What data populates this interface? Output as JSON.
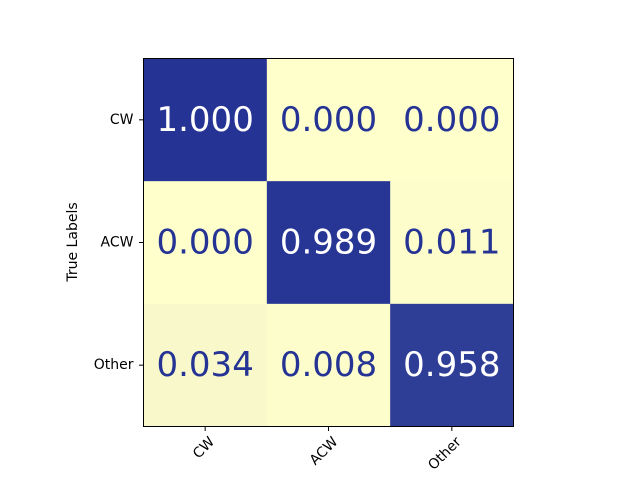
{
  "chart_data": {
    "type": "heatmap",
    "title": "",
    "xlabel": "",
    "ylabel": "True Labels",
    "x_categories": [
      "CW",
      "ACW",
      "Other"
    ],
    "y_categories": [
      "CW",
      "ACW",
      "Other"
    ],
    "values": [
      [
        1.0,
        0.0,
        0.0
      ],
      [
        0.0,
        0.989,
        0.011
      ],
      [
        0.034,
        0.008,
        0.958
      ]
    ],
    "value_labels": [
      [
        "1.000",
        "0.000",
        "0.000"
      ],
      [
        "0.000",
        "0.989",
        "0.011"
      ],
      [
        "0.034",
        "0.008",
        "0.958"
      ]
    ],
    "colormap": {
      "low": "#ffffcc",
      "high": "#253494"
    },
    "text_color_on_high": "#ffffff",
    "text_color_on_low": "#253494",
    "xtick_rotation_deg": 45,
    "grid": false,
    "colorbar": false
  }
}
